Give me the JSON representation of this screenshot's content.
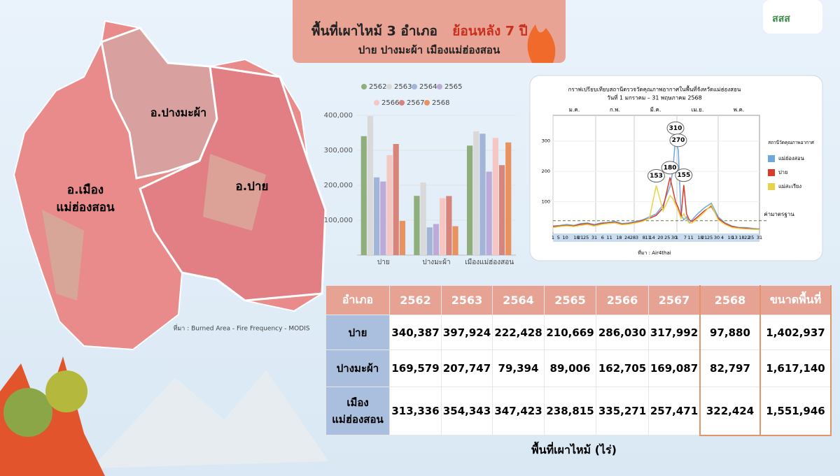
{
  "header": {
    "title_part1": "พื้นที่เผาไหม้ 3 อำเภอ",
    "title_part2": "ย้อนหลัง 7 ปี",
    "subtitle": "ปาย ปางมะผ้า เมืองแม่ฮ่องสอน",
    "logo_text": "สสส"
  },
  "map": {
    "labels": [
      "อ.ปางมะผ้า",
      "อ.เมือง",
      "แม่ฮ่องสอน",
      "อ.ปาย"
    ],
    "source": "ที่มา : Burned Area - Fire Frequency - MODIS"
  },
  "chart_data": [
    {
      "type": "bar",
      "categories": [
        "ปาย",
        "ปางมะผ้า",
        "เมืองแม่ฮ่องสอน"
      ],
      "series": [
        {
          "name": "2562",
          "color": "#8fae7c",
          "values": [
            340387,
            169579,
            313336
          ]
        },
        {
          "name": "2563",
          "color": "#d9d9d9",
          "values": [
            397924,
            207747,
            354343
          ]
        },
        {
          "name": "2564",
          "color": "#a2b5d6",
          "values": [
            222428,
            79394,
            347423
          ]
        },
        {
          "name": "2565",
          "color": "#bcaad9",
          "values": [
            210669,
            89006,
            238815
          ]
        },
        {
          "name": "2566",
          "color": "#f5c6c2",
          "values": [
            286030,
            162705,
            335271
          ]
        },
        {
          "name": "2567",
          "color": "#d8847b",
          "values": [
            317992,
            169087,
            257471
          ]
        },
        {
          "name": "2568",
          "color": "#e8925f",
          "values": [
            97880,
            82797,
            322424
          ]
        }
      ],
      "ylim": [
        0,
        400000
      ],
      "yticks": [
        {
          "value": 100000,
          "label": "100,000"
        },
        {
          "value": 200000,
          "label": "200,000"
        },
        {
          "value": 300000,
          "label": "300,000"
        },
        {
          "value": 400000,
          "label": "400,000"
        }
      ],
      "grid": true
    },
    {
      "type": "line",
      "title": "กราฟเปรียบเทียบสถานีตรวจวัดคุณภาพอากาศในพื้นที่จังหวัดแม่ฮ่องสอน",
      "subtitle": "วันที่ 1 มกราคม – 31 พฤษภาคม 2568",
      "legend_title": "สถานีวัดคุณภาพอากาศ",
      "source": "ที่มา : Air4thai",
      "months": [
        {
          "value": 1,
          "label": "ม.ค."
        },
        {
          "value": 32,
          "label": "ก.พ."
        },
        {
          "value": 60,
          "label": "มี.ค."
        },
        {
          "value": 91,
          "label": "เม.ย."
        },
        {
          "value": 121,
          "label": "พ.ค."
        }
      ],
      "x": [
        1,
        6,
        11,
        16,
        21,
        26,
        31,
        36,
        41,
        46,
        51,
        56,
        61,
        66,
        71,
        76,
        81,
        86,
        88,
        90,
        92,
        94,
        96,
        98,
        100,
        102,
        106,
        111,
        116,
        121,
        126,
        131,
        136,
        141,
        146,
        151
      ],
      "series": [
        {
          "name": "แม่ฮ่องสอน",
          "color": "#6fa8dc",
          "values": [
            20,
            22,
            25,
            22,
            28,
            30,
            25,
            30,
            32,
            35,
            28,
            30,
            35,
            40,
            50,
            60,
            90,
            150,
            200,
            310,
            270,
            60,
            40,
            50,
            30,
            40,
            60,
            80,
            95,
            50,
            30,
            20,
            15,
            15,
            12,
            10
          ]
        },
        {
          "name": "ปาย",
          "color": "#d93b2b",
          "values": [
            18,
            20,
            22,
            20,
            25,
            28,
            22,
            28,
            30,
            32,
            26,
            28,
            32,
            38,
            45,
            55,
            80,
            180,
            140,
            100,
            80,
            50,
            155,
            60,
            40,
            35,
            50,
            70,
            85,
            45,
            28,
            18,
            14,
            12,
            10,
            9
          ]
        },
        {
          "name": "แม่สะเรียง",
          "color": "#e8d44a",
          "values": [
            15,
            18,
            20,
            18,
            22,
            25,
            20,
            25,
            28,
            30,
            24,
            26,
            30,
            35,
            45,
            153,
            70,
            120,
            110,
            90,
            70,
            45,
            60,
            40,
            30,
            30,
            45,
            65,
            90,
            40,
            25,
            15,
            12,
            10,
            9,
            8
          ]
        }
      ],
      "annotations": [
        {
          "text": "310",
          "x": 90,
          "y": 310
        },
        {
          "text": "270",
          "x": 92,
          "y": 270
        },
        {
          "text": "180",
          "x": 86,
          "y": 180
        },
        {
          "text": "155",
          "x": 96,
          "y": 155
        },
        {
          "text": "153",
          "x": 76,
          "y": 153
        }
      ],
      "reference": {
        "label": "ค่ามาตรฐาน",
        "value": 37.5
      },
      "xlim": [
        1,
        151
      ],
      "xticks": [
        {
          "value": 1,
          "label": "1"
        },
        {
          "value": 5,
          "label": "5"
        },
        {
          "value": 10,
          "label": "10"
        },
        {
          "value": 18,
          "label": "18"
        },
        {
          "value": 21,
          "label": "21"
        },
        {
          "value": 25,
          "label": "25"
        },
        {
          "value": 31,
          "label": "31"
        },
        {
          "value": 37,
          "label": "6"
        },
        {
          "value": 42,
          "label": "11"
        },
        {
          "value": 49,
          "label": "18"
        },
        {
          "value": 55,
          "label": "24"
        },
        {
          "value": 59,
          "label": "28"
        },
        {
          "value": 62,
          "label": "3"
        },
        {
          "value": 67,
          "label": "8"
        },
        {
          "value": 70,
          "label": "11"
        },
        {
          "value": 73,
          "label": "14"
        },
        {
          "value": 79,
          "label": "20"
        },
        {
          "value": 84,
          "label": "25"
        },
        {
          "value": 89,
          "label": "30"
        },
        {
          "value": 91,
          "label": "1"
        },
        {
          "value": 97,
          "label": "7"
        },
        {
          "value": 101,
          "label": "11"
        },
        {
          "value": 108,
          "label": "18"
        },
        {
          "value": 111,
          "label": "21"
        },
        {
          "value": 115,
          "label": "25"
        },
        {
          "value": 120,
          "label": "30"
        },
        {
          "value": 124,
          "label": "4"
        },
        {
          "value": 130,
          "label": "10"
        },
        {
          "value": 133,
          "label": "13"
        },
        {
          "value": 138,
          "label": "18"
        },
        {
          "value": 142,
          "label": "22"
        },
        {
          "value": 145,
          "label": "25"
        },
        {
          "value": 151,
          "label": "31"
        }
      ],
      "ylim": [
        0,
        350
      ],
      "yticks": [
        100,
        200,
        300
      ]
    }
  ],
  "table": {
    "header": [
      "อำเภอ",
      "2562",
      "2563",
      "2564",
      "2565",
      "2566",
      "2567",
      "2568",
      "ขนาดพื้นที่"
    ],
    "rows": [
      [
        "ปาย",
        "340,387",
        "397,924",
        "222,428",
        "210,669",
        "286,030",
        "317,992",
        "97,880",
        "1,402,937"
      ],
      [
        "ปางมะผ้า",
        "169,579",
        "207,747",
        "79,394",
        "89,006",
        "162,705",
        "169,087",
        "82,797",
        "1,617,140"
      ],
      [
        "เมือง แม่ฮ่องสอน",
        "313,336",
        "354,343",
        "347,423",
        "238,815",
        "335,271",
        "257,471",
        "322,424",
        "1,551,946"
      ]
    ],
    "caption": "พื้นที่เผาไหม้  (ไร่)"
  }
}
